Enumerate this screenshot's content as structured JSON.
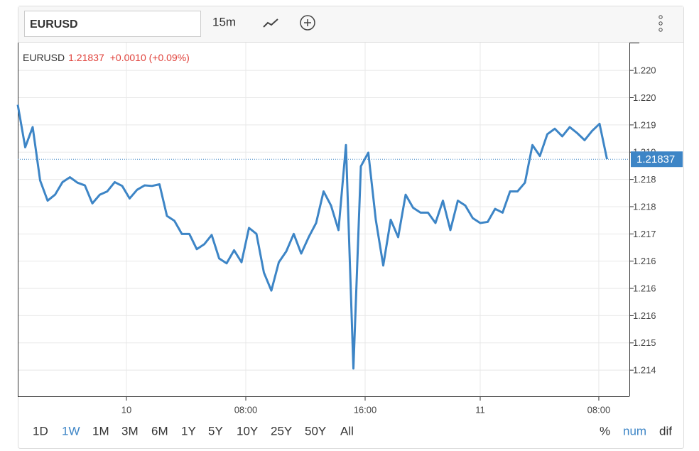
{
  "toolbar": {
    "symbol": "EURUSD",
    "interval": "15m"
  },
  "legend": {
    "symbol": "EURUSD",
    "change": "+0.0010 (+0.09%)"
  },
  "chart_data": {
    "type": "line",
    "series": [
      {
        "name": "EURUSD",
        "color": "#3d85c6",
        "values": [
          1.21937,
          1.21859,
          1.21896,
          1.21798,
          1.21761,
          1.21772,
          1.21795,
          1.21804,
          1.21794,
          1.21789,
          1.21756,
          1.21772,
          1.21778,
          1.21795,
          1.21788,
          1.21765,
          1.21781,
          1.21789,
          1.21788,
          1.21791,
          1.21733,
          1.21724,
          1.217,
          1.217,
          1.21672,
          1.21681,
          1.21698,
          1.21655,
          1.21646,
          1.2167,
          1.21648,
          1.21711,
          1.217,
          1.21629,
          1.21596,
          1.21648,
          1.21668,
          1.217,
          1.21664,
          1.21694,
          1.2172,
          1.21778,
          1.21752,
          1.21707,
          1.21863,
          1.21453,
          1.21824,
          1.21849,
          1.21726,
          1.21642,
          1.21726,
          1.21694,
          1.21772,
          1.21748,
          1.21739,
          1.21739,
          1.2172,
          1.21761,
          1.21707,
          1.21761,
          1.21752,
          1.21729,
          1.2172,
          1.21722,
          1.21746,
          1.21739,
          1.21778,
          1.21778,
          1.21794,
          1.21863,
          1.21843,
          1.21883,
          1.21893,
          1.21879,
          1.21896,
          1.21885,
          1.21872,
          1.21889,
          1.21902,
          1.21837
        ]
      }
    ],
    "x": [
      0,
      1,
      2,
      3,
      4,
      5,
      6,
      7,
      8,
      9,
      10,
      11,
      12,
      13,
      14,
      15,
      16,
      17,
      18,
      19,
      20,
      21,
      22,
      23,
      24,
      25,
      26,
      27,
      28,
      29,
      30,
      31,
      32,
      33,
      34,
      35,
      36,
      37,
      38,
      39,
      40,
      41,
      42,
      43,
      44,
      45,
      46,
      47,
      48,
      49,
      50,
      51,
      52,
      53,
      54,
      55,
      56,
      57,
      58,
      59,
      60,
      61,
      62,
      63,
      64,
      65,
      66,
      67,
      68,
      69,
      70,
      71,
      72,
      73,
      74,
      75,
      76,
      77,
      78,
      79
    ],
    "xlim": [
      0,
      82
    ],
    "xticks": [
      {
        "value": 14.57,
        "label": "10"
      },
      {
        "value": 30.57,
        "label": "08:00"
      },
      {
        "value": 46.57,
        "label": "16:00"
      },
      {
        "value": 62,
        "label": "11"
      },
      {
        "value": 77.9,
        "label": "08:00"
      }
    ],
    "ylim": [
      1.21402,
      1.22051
    ],
    "yticks": [
      {
        "value": 1.22,
        "label": "1.220"
      },
      {
        "value": 1.2195,
        "label": "1.220"
      },
      {
        "value": 1.219,
        "label": "1.219"
      },
      {
        "value": 1.2185,
        "label": "1.219"
      },
      {
        "value": 1.218,
        "label": "1.218"
      },
      {
        "value": 1.2175,
        "label": "1.218"
      },
      {
        "value": 1.217,
        "label": "1.217"
      },
      {
        "value": 1.2165,
        "label": "1.216"
      },
      {
        "value": 1.216,
        "label": "1.216"
      },
      {
        "value": 1.2155,
        "label": "1.216"
      },
      {
        "value": 1.215,
        "label": "1.215"
      },
      {
        "value": 1.2145,
        "label": "1.214"
      }
    ],
    "last": 1.21837,
    "grid": true
  },
  "ranges": [
    "1D",
    "1W",
    "1M",
    "3M",
    "6M",
    "1Y",
    "5Y",
    "10Y",
    "25Y",
    "50Y",
    "All"
  ],
  "selected_range": "1W",
  "modes": [
    "%",
    "num",
    "dif"
  ],
  "selected_mode": "num"
}
